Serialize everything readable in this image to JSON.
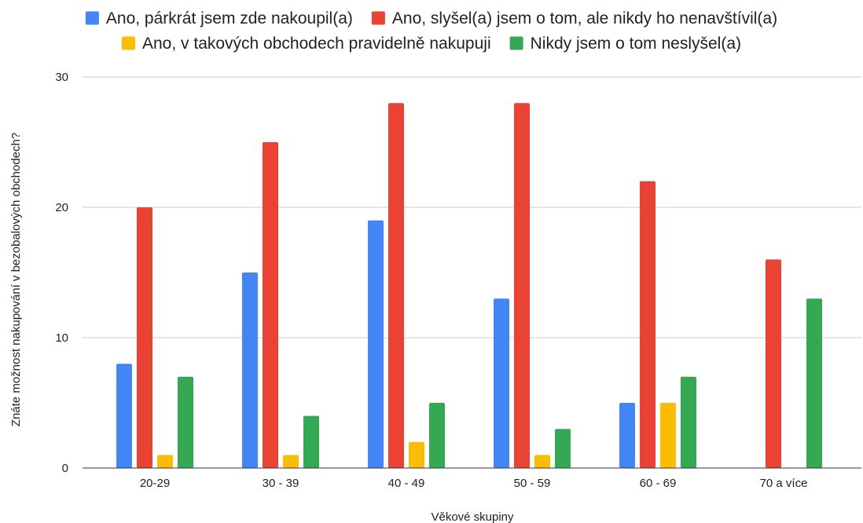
{
  "chart_data": {
    "type": "bar",
    "title": "",
    "xlabel": "Věkové skupiny",
    "ylabel": "Znáte možnost nakupování v bezobalových obchodech?",
    "ylim": [
      0,
      30
    ],
    "yticks": [
      0,
      10,
      20,
      30
    ],
    "grid": true,
    "legend_position": "top",
    "categories": [
      "20-29",
      "30 - 39",
      "40 - 49",
      "50 - 59",
      "60 - 69",
      "70 a více"
    ],
    "series": [
      {
        "name": "Ano, párkrát jsem zde nakoupil(a)",
        "color": "#4285F4",
        "values": [
          8,
          15,
          19,
          13,
          5,
          0
        ]
      },
      {
        "name": "Ano, slyšel(a) jsem o tom, ale nikdy ho nenavštívil(a)",
        "color": "#EA4335",
        "values": [
          20,
          25,
          28,
          28,
          22,
          16
        ]
      },
      {
        "name": "Ano, v takových obchodech pravidelně nakupuji",
        "color": "#FBBC04",
        "values": [
          1,
          1,
          2,
          1,
          5,
          0
        ]
      },
      {
        "name": "Nikdy jsem o tom neslyšel(a)",
        "color": "#34A853",
        "values": [
          7,
          4,
          5,
          3,
          7,
          13
        ]
      }
    ]
  }
}
